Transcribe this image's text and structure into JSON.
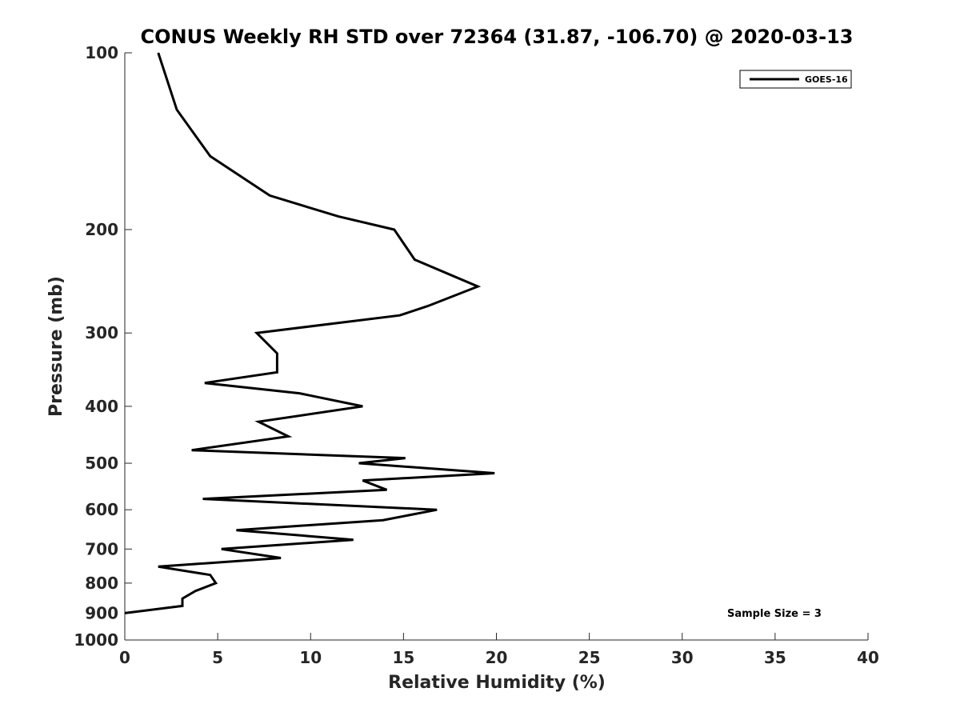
{
  "chart_data": {
    "type": "line",
    "title": "CONUS Weekly RH STD over 72364 (31.87, -106.70) @ 2020-03-13",
    "xlabel": "Relative Humidity (%)",
    "ylabel": "Pressure (mb)",
    "xlim": [
      0,
      40
    ],
    "ylim": [
      100,
      1000
    ],
    "y_scale": "log",
    "y_reversed": true,
    "xticks": [
      0,
      5,
      10,
      15,
      20,
      25,
      30,
      35,
      40
    ],
    "yticks": [
      100,
      200,
      300,
      400,
      500,
      600,
      700,
      800,
      900,
      1000
    ],
    "legend_position": "top-right",
    "annotation": "Sample Size = 3",
    "series": [
      {
        "name": "GOES-16",
        "color": "#000000",
        "points": [
          {
            "x": 1.8,
            "p": 100
          },
          {
            "x": 2.8,
            "p": 125
          },
          {
            "x": 4.6,
            "p": 150
          },
          {
            "x": 7.8,
            "p": 175
          },
          {
            "x": 11.5,
            "p": 190
          },
          {
            "x": 14.5,
            "p": 200
          },
          {
            "x": 15.6,
            "p": 225
          },
          {
            "x": 19.0,
            "p": 250
          },
          {
            "x": 16.3,
            "p": 270
          },
          {
            "x": 14.8,
            "p": 280
          },
          {
            "x": 7.1,
            "p": 300
          },
          {
            "x": 8.2,
            "p": 325
          },
          {
            "x": 8.2,
            "p": 350
          },
          {
            "x": 4.3,
            "p": 365
          },
          {
            "x": 9.4,
            "p": 380
          },
          {
            "x": 12.8,
            "p": 400
          },
          {
            "x": 7.2,
            "p": 425
          },
          {
            "x": 8.8,
            "p": 450
          },
          {
            "x": 3.6,
            "p": 475
          },
          {
            "x": 15.1,
            "p": 490
          },
          {
            "x": 12.6,
            "p": 500
          },
          {
            "x": 19.9,
            "p": 520
          },
          {
            "x": 12.8,
            "p": 535
          },
          {
            "x": 14.1,
            "p": 555
          },
          {
            "x": 4.2,
            "p": 575
          },
          {
            "x": 16.8,
            "p": 600
          },
          {
            "x": 13.9,
            "p": 625
          },
          {
            "x": 6.0,
            "p": 650
          },
          {
            "x": 12.3,
            "p": 675
          },
          {
            "x": 5.2,
            "p": 700
          },
          {
            "x": 8.4,
            "p": 725
          },
          {
            "x": 1.8,
            "p": 750
          },
          {
            "x": 4.6,
            "p": 775
          },
          {
            "x": 4.9,
            "p": 800
          },
          {
            "x": 3.8,
            "p": 825
          },
          {
            "x": 3.1,
            "p": 850
          },
          {
            "x": 3.1,
            "p": 875
          },
          {
            "x": 0.0,
            "p": 900
          }
        ]
      }
    ]
  }
}
